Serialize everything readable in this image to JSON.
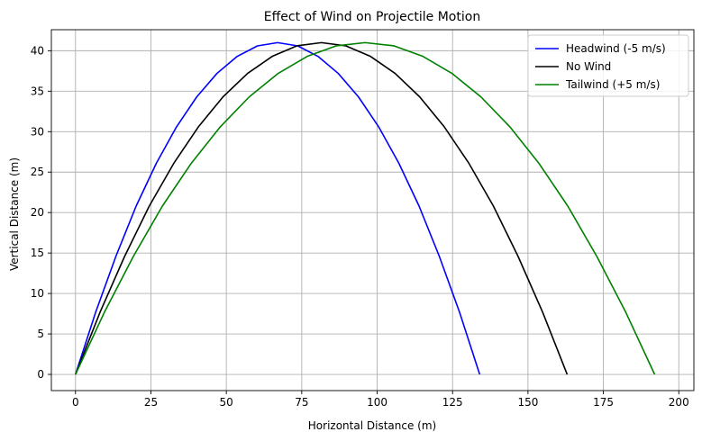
{
  "chart_data": {
    "type": "line",
    "title": "Effect of Wind on Projectile Motion",
    "xlabel": "Horizontal Distance (m)",
    "ylabel": "Vertical Distance (m)",
    "xlim": [
      -8,
      205
    ],
    "ylim": [
      -2,
      42.6
    ],
    "xticks": [
      0,
      25,
      50,
      75,
      100,
      125,
      150,
      175,
      200
    ],
    "yticks": [
      0,
      5,
      10,
      15,
      20,
      25,
      30,
      35,
      40
    ],
    "grid": true,
    "legend_position": "top-right",
    "series": [
      {
        "name": "Headwind (-5 m/s)",
        "color": "#0000ff",
        "x": [
          0,
          6.7,
          13.4,
          20.1,
          26.8,
          33.5,
          40.2,
          46.9,
          53.6,
          60.3,
          67.0,
          73.7,
          80.4,
          87.1,
          93.8,
          100.5,
          107.2,
          113.9,
          120.6,
          127.3,
          134.0
        ],
        "y": [
          0,
          7.7,
          14.6,
          20.8,
          26.1,
          30.6,
          34.3,
          37.2,
          39.3,
          40.6,
          41.0,
          40.6,
          39.3,
          37.2,
          34.3,
          30.6,
          26.1,
          20.8,
          14.6,
          7.7,
          0
        ]
      },
      {
        "name": "No Wind",
        "color": "#000000",
        "x": [
          0,
          8.15,
          16.3,
          24.45,
          32.6,
          40.75,
          48.9,
          57.05,
          65.2,
          73.35,
          81.5,
          89.65,
          97.8,
          105.95,
          114.1,
          122.25,
          130.4,
          138.55,
          146.7,
          154.85,
          163.0
        ],
        "y": [
          0,
          7.7,
          14.6,
          20.8,
          26.1,
          30.6,
          34.3,
          37.2,
          39.3,
          40.6,
          41.0,
          40.6,
          39.3,
          37.2,
          34.3,
          30.6,
          26.1,
          20.8,
          14.6,
          7.7,
          0
        ]
      },
      {
        "name": "Tailwind (+5 m/s)",
        "color": "#008000",
        "x": [
          0,
          9.6,
          19.2,
          28.8,
          38.4,
          48.0,
          57.6,
          67.2,
          76.8,
          86.4,
          96.0,
          105.6,
          115.2,
          124.8,
          134.4,
          144.0,
          153.6,
          163.2,
          172.8,
          182.4,
          192.0
        ],
        "y": [
          0,
          7.7,
          14.6,
          20.8,
          26.1,
          30.6,
          34.3,
          37.2,
          39.3,
          40.6,
          41.0,
          40.6,
          39.3,
          37.2,
          34.3,
          30.6,
          26.1,
          20.8,
          14.6,
          7.7,
          0
        ]
      }
    ]
  }
}
